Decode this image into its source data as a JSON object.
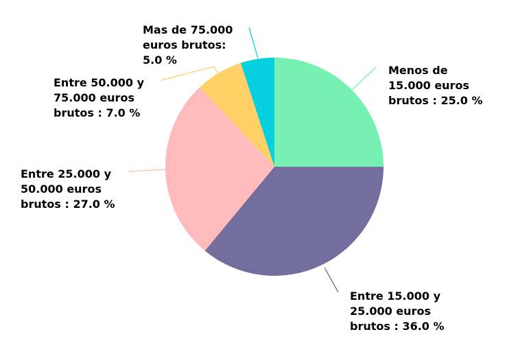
{
  "chart_data": {
    "type": "pie",
    "title": "",
    "start_angle_deg": 90,
    "direction": "clockwise",
    "slices": [
      {
        "label": "Menos de 15.000 euros brutos",
        "value": 25.0,
        "color": "#77f0b4",
        "label_lines": [
          "Menos de",
          "15.000 euros",
          "brutos : 25.0 %"
        ]
      },
      {
        "label": "Entre 15.000 y 25.000 euros brutos",
        "value": 36.0,
        "color": "#736e9e",
        "label_lines": [
          "Entre 15.000 y",
          "25.000 euros",
          "brutos : 36.0 %"
        ]
      },
      {
        "label": "Entre 25.000 y 50.000 euros brutos",
        "value": 27.0,
        "color": "#ffbbbb",
        "label_lines": [
          "Entre 25.000 y",
          "50.000 euros",
          "brutos : 27.0 %"
        ]
      },
      {
        "label": "Entre 50.000 y 75.000 euros brutos",
        "value": 7.0,
        "color": "#ffd166",
        "label_lines": [
          "Entre 50.000 y",
          "75.000 euros",
          "brutos : 7.0 %"
        ]
      },
      {
        "label": "Mas de 75.000 euros brutos",
        "value": 5.0,
        "color": "#06cfe0",
        "label_lines": [
          "Mas de 75.000",
          "euros brutos:",
          "5.0 %"
        ]
      }
    ]
  }
}
